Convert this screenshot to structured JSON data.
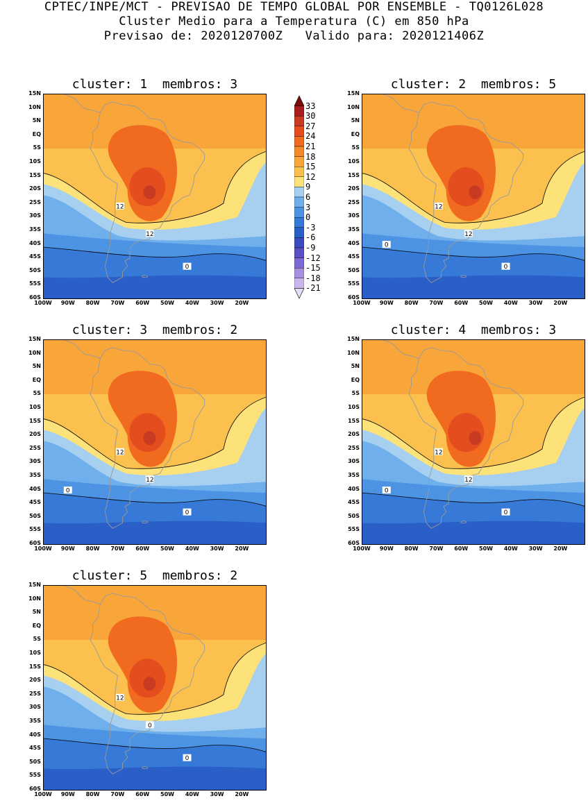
{
  "header": {
    "line1": "CPTEC/INPE/MCT - PREVISAO DE TEMPO GLOBAL POR ENSEMBLE - TQ0126L028",
    "line2": "Cluster Medio para a Temperatura (C) em 850 hPa",
    "line3": "Previsao de: 2020120700Z   Valido para: 2020121406Z"
  },
  "panels": [
    {
      "title": "cluster: 1  membros: 3",
      "contour_labels": [
        "12",
        "12",
        "0"
      ]
    },
    {
      "title": "cluster: 2  membros: 5",
      "contour_labels": [
        "12",
        "12",
        "0",
        "0"
      ]
    },
    {
      "title": "cluster: 3  membros: 2",
      "contour_labels": [
        "12",
        "12",
        "0",
        "0"
      ]
    },
    {
      "title": "cluster: 4  membros: 3",
      "contour_labels": [
        "12",
        "12",
        "0",
        "0"
      ]
    },
    {
      "title": "cluster: 5  membros: 2",
      "contour_labels": [
        "12",
        "0",
        "0"
      ]
    }
  ],
  "lat_labels": [
    "15N",
    "10N",
    "5N",
    "EQ",
    "5S",
    "10S",
    "15S",
    "20S",
    "25S",
    "30S",
    "35S",
    "40S",
    "45S",
    "50S",
    "55S",
    "60S"
  ],
  "lon_labels": [
    "100W",
    "90W",
    "80W",
    "70W",
    "60W",
    "50W",
    "40W",
    "30W",
    "20W"
  ],
  "colorbar": {
    "levels": [
      "33",
      "30",
      "27",
      "24",
      "21",
      "18",
      "15",
      "12",
      "9",
      "6",
      "3",
      "0",
      "-3",
      "-6",
      "-9",
      "-12",
      "-15",
      "-18",
      "-21"
    ],
    "colors": [
      "#7a0c0c",
      "#a81d1d",
      "#c83a22",
      "#e44e1f",
      "#f06a1f",
      "#f3892b",
      "#f8a53a",
      "#fbc04d",
      "#fde27a",
      "#a6cff0",
      "#6fb0ec",
      "#4d93e3",
      "#3679d6",
      "#2a5fc7",
      "#3a4cc0",
      "#5a4fc4",
      "#7e6ad2",
      "#a690e0",
      "#c8b6ec",
      "#e6dcf6"
    ]
  }
}
